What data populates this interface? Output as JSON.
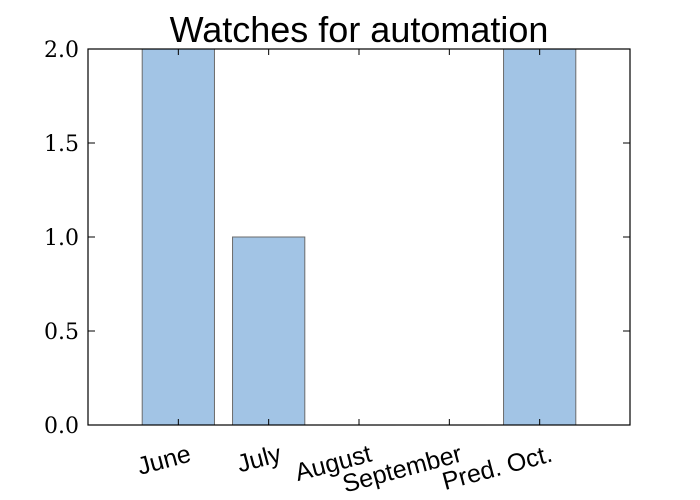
{
  "chart_data": {
    "type": "bar",
    "title": "Watches for automation",
    "xlabel": "",
    "ylabel": "",
    "categories": [
      "June",
      "July",
      "August",
      "September",
      "Pred. Oct."
    ],
    "values": [
      2,
      1,
      0,
      0,
      2
    ],
    "ylim": [
      0,
      2.0
    ],
    "yticks": [
      "0.0",
      "0.5",
      "1.0",
      "1.5",
      "2.0"
    ],
    "bar_color": "#a2c4e5",
    "bar_edge_color": "#6b6b6b",
    "grid": false,
    "legend": "none"
  }
}
